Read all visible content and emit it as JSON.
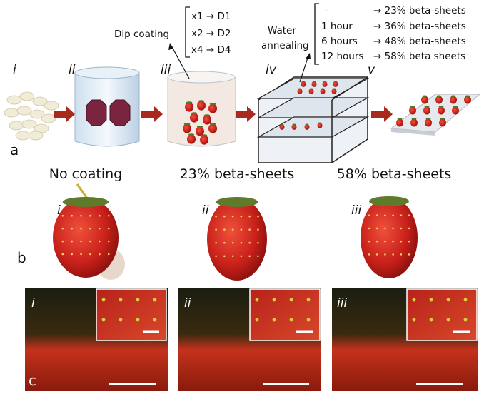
{
  "panel_a": {
    "label": "a",
    "steps": [
      "i",
      "ii",
      "iii",
      "iv",
      "v"
    ],
    "dip_coating": {
      "title": "Dip coating",
      "items": [
        "x1 → D1",
        "x2 → D2",
        "x4 → D4"
      ]
    },
    "water_annealing": {
      "title": [
        "Water",
        "annealing"
      ],
      "durations": [
        "-",
        "1 hour",
        "6 hours",
        "12 hours"
      ],
      "results": [
        "→ 23% beta-sheets",
        "→ 36% beta-sheets",
        "→ 48% beta-sheets",
        "→ 58% beta sheets"
      ]
    }
  },
  "panel_b": {
    "label": "b",
    "headings": [
      "No  coating",
      "23% beta-sheets",
      "58% beta-sheets"
    ],
    "sublabels": [
      "i",
      "ii",
      "iii"
    ]
  },
  "panel_c": {
    "label": "c",
    "sublabels": [
      "i",
      "ii",
      "iii"
    ]
  }
}
